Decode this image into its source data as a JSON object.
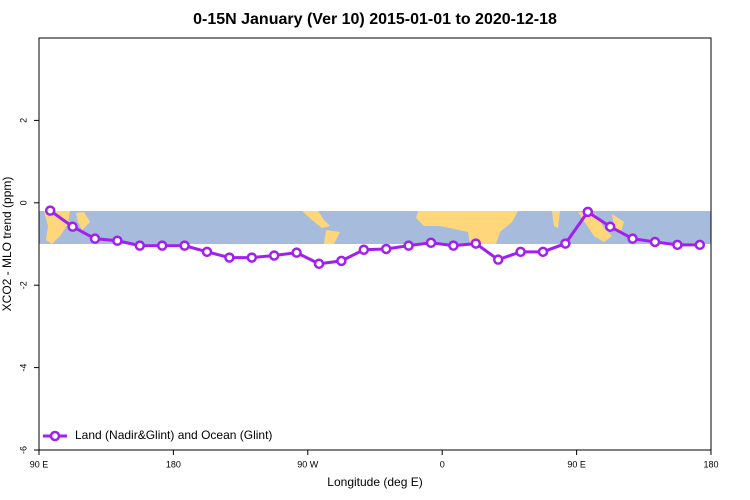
{
  "chart_data": {
    "type": "line",
    "title": "0-15N January (Ver 10)   2015-01-01 to 2020-12-18",
    "x_label": "Longitude (deg E)",
    "y_label": "XCO2 - MLO trend (ppm)",
    "xlim": [
      90,
      540
    ],
    "xticks": [
      {
        "value": 90,
        "label": "90 E"
      },
      {
        "value": 180,
        "label": "180"
      },
      {
        "value": 270,
        "label": "90 W"
      },
      {
        "value": 360,
        "label": "0"
      },
      {
        "value": 450,
        "label": "90 E"
      },
      {
        "value": 540,
        "label": "180"
      }
    ],
    "ylim": [
      -6,
      4
    ],
    "yticks": [
      -6,
      -4,
      -2,
      0,
      2
    ],
    "legend": "bottom-left",
    "x": [
      97.5,
      112.5,
      127.5,
      142.5,
      157.5,
      172.5,
      187.5,
      202.5,
      217.5,
      232.5,
      247.5,
      262.5,
      277.5,
      292.5,
      307.5,
      322.5,
      337.5,
      352.5,
      367.5,
      382.5,
      397.5,
      412.5,
      427.5,
      442.5,
      457.5,
      472.5,
      487.5,
      502.5,
      517.5,
      532.5
    ],
    "series": [
      {
        "name": "Land (Nadir&Glint) and Ocean (Glint)",
        "color": "#a020f0",
        "values": [
          -0.19,
          -0.58,
          -0.87,
          -0.92,
          -1.04,
          -1.04,
          -1.04,
          -1.19,
          -1.33,
          -1.33,
          -1.28,
          -1.21,
          -1.48,
          -1.41,
          -1.14,
          -1.12,
          -1.04,
          -0.97,
          -1.04,
          -0.99,
          -1.38,
          -1.19,
          -1.19,
          -0.99,
          -0.22,
          -0.58,
          -0.87,
          -0.95,
          -1.02,
          -1.02
        ]
      }
    ]
  }
}
